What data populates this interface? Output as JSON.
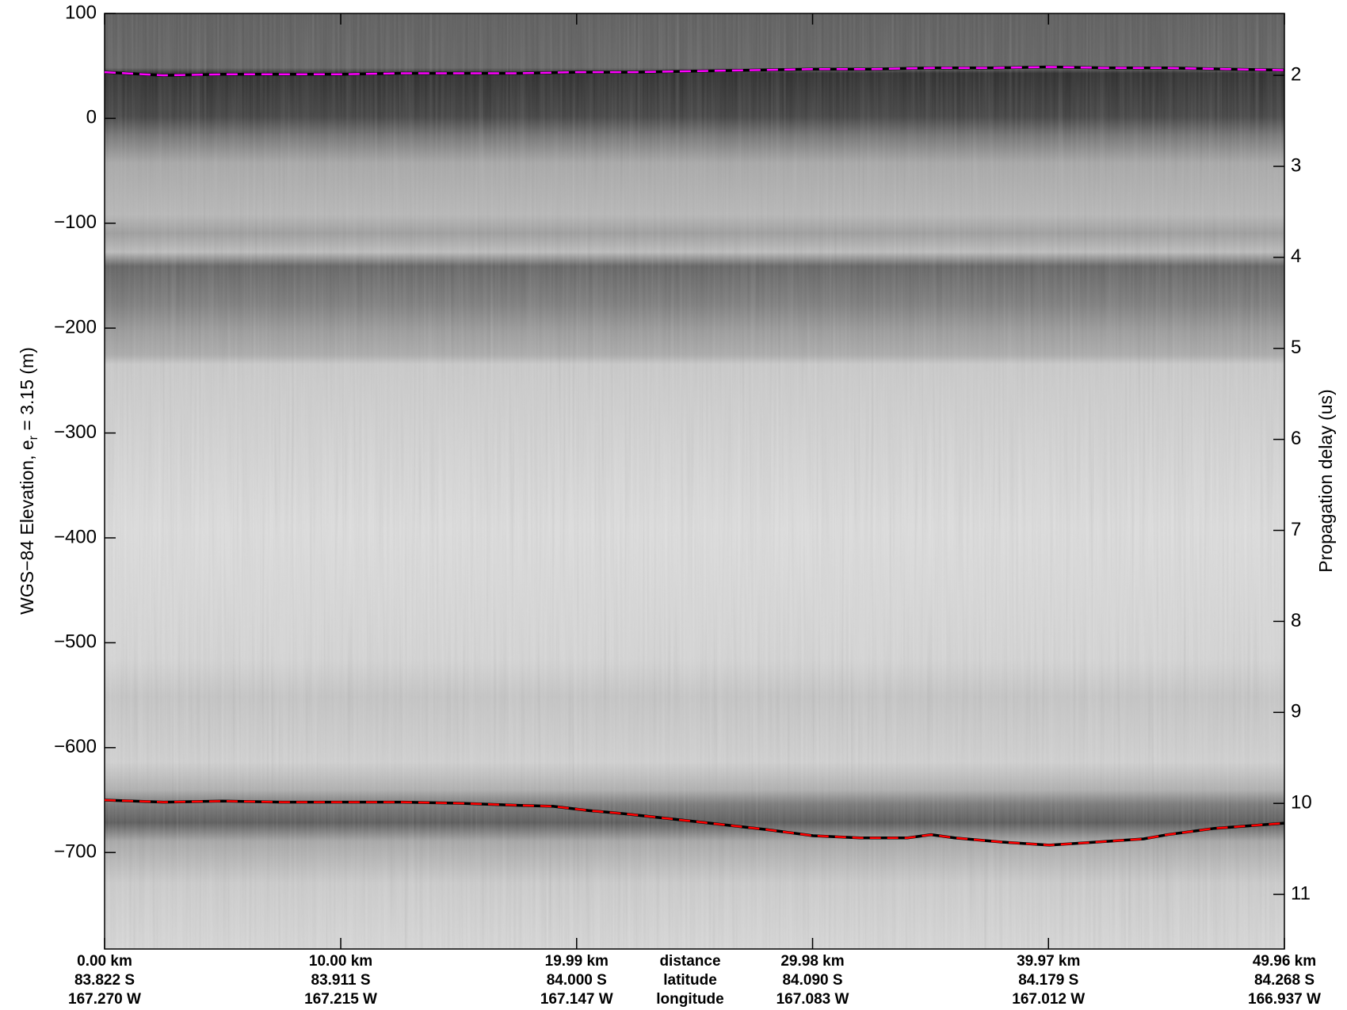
{
  "chart_data": {
    "type": "line",
    "ylabel": "WGS−84 Elevation, e",
    "ylabel_sub": "r",
    "ylabel_end": " = 3.15 (m)",
    "y2label": "Propagation delay (us)",
    "xlim": [
      0,
      49.96
    ],
    "xticks": [
      {
        "value": 0,
        "label": "0.00 km"
      },
      {
        "value": 10,
        "label": "10.00 km"
      },
      {
        "value": 19.99,
        "label": "19.99 km"
      },
      {
        "value": 29.98,
        "label": "29.98 km"
      },
      {
        "value": 39.97,
        "label": "39.97 km"
      },
      {
        "value": 49.96,
        "label": "49.96 km"
      }
    ],
    "latitudes": [
      "83.822 S",
      "83.911 S",
      "84.000 S",
      "84.090 S",
      "84.179 S",
      "84.268 S"
    ],
    "longitudes": [
      "167.270 W",
      "167.215 W",
      "167.147 W",
      "167.083 W",
      "167.012 W",
      "166.937 W"
    ],
    "row_names": [
      "distance",
      "latitude",
      "longitude"
    ],
    "ylim": [
      -792,
      100
    ],
    "yticks": [
      100,
      0,
      {
        "value": -100,
        "label": "−100"
      },
      {
        "value": -200,
        "label": "−200"
      },
      {
        "value": -300,
        "label": "−300"
      },
      {
        "value": -400,
        "label": "−400"
      },
      {
        "value": -500,
        "label": "−500"
      },
      {
        "value": -600,
        "label": "−600"
      },
      {
        "value": -700,
        "label": "−700"
      }
    ],
    "y2lim": [
      11.6,
      1.32
    ],
    "y2ticks": [
      2,
      3,
      4,
      5,
      6,
      7,
      8,
      9,
      10,
      11
    ],
    "series": [
      {
        "color": "#ff00ff",
        "x": [
          0,
          2.5,
          5,
          7.5,
          10,
          12.5,
          15,
          17.5,
          20,
          22.5,
          25,
          27.5,
          30,
          32.5,
          35,
          37.5,
          40,
          42.5,
          45,
          47.5,
          49.96
        ],
        "values": [
          44,
          41,
          42,
          42,
          42,
          43,
          43,
          43,
          44,
          44,
          45,
          46,
          47,
          47,
          48,
          48,
          49,
          48,
          48,
          47,
          46
        ]
      },
      {
        "color": "#ff0000",
        "x": [
          0,
          2.5,
          5,
          7.5,
          10,
          12.5,
          15,
          17.5,
          19,
          20.5,
          22,
          24,
          26,
          28,
          30,
          32,
          34,
          35,
          36,
          38,
          40,
          42,
          44,
          45,
          47,
          49.96
        ],
        "values": [
          -650,
          -652,
          -651,
          -652,
          -652,
          -652,
          -653,
          -655,
          -656,
          -660,
          -663,
          -668,
          -673,
          -678,
          -684,
          -686,
          -686,
          -683,
          -686,
          -690,
          -693,
          -690,
          -687,
          -683,
          -677,
          -672
        ]
      }
    ]
  }
}
